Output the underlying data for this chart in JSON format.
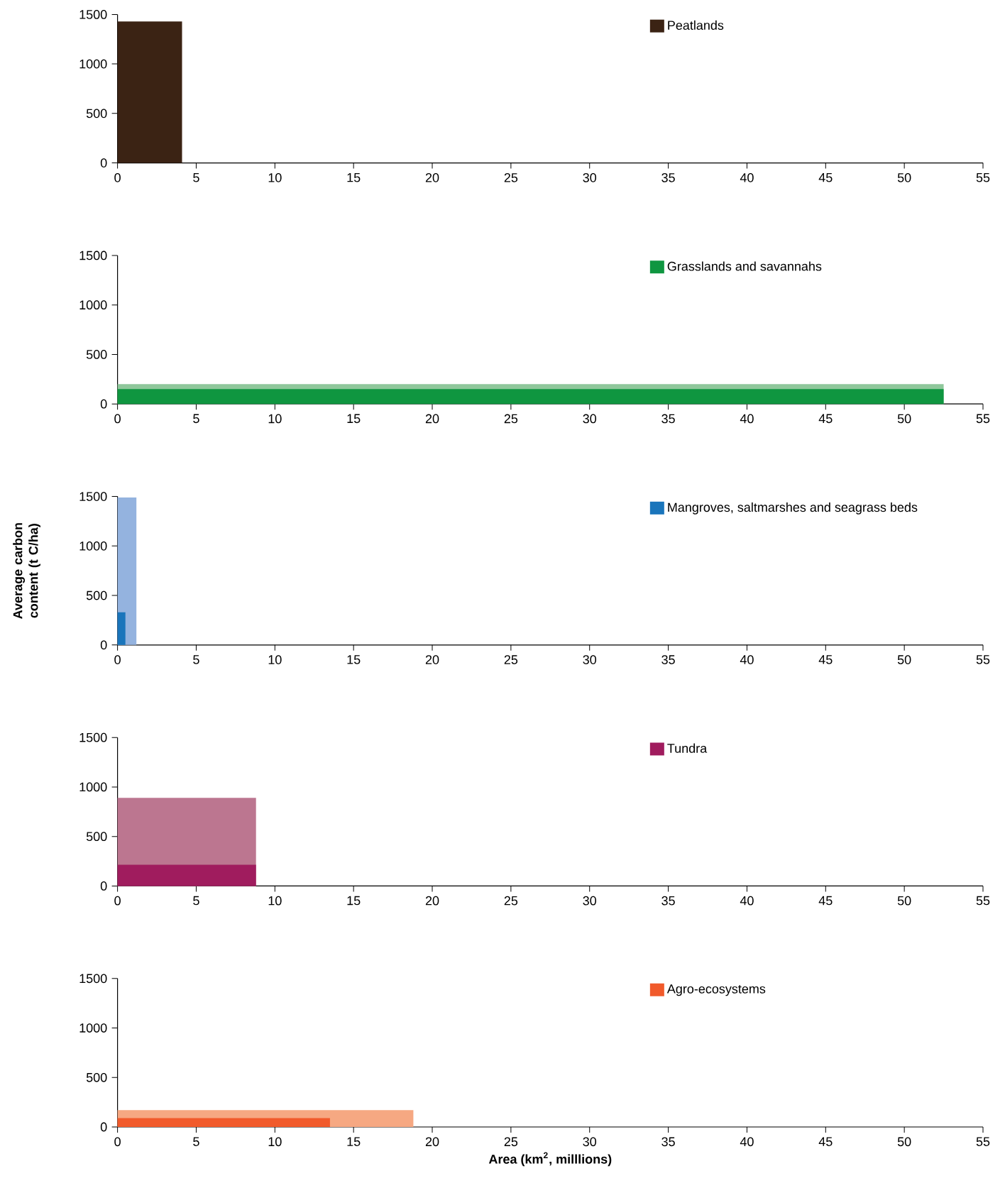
{
  "chart_data": [
    {
      "type": "area",
      "xlim": [
        0,
        55
      ],
      "ylim": [
        0,
        1500
      ],
      "xticks": [
        0,
        5,
        10,
        15,
        20,
        25,
        30,
        35,
        40,
        45,
        50,
        55
      ],
      "yticks": [
        0,
        500,
        1000,
        1500
      ],
      "legend": "top right",
      "series": [
        {
          "name": "Peatlands",
          "color": "#3b2314",
          "x": [
            0,
            4.1
          ],
          "values": [
            1430,
            1430
          ]
        }
      ]
    },
    {
      "type": "area",
      "xlim": [
        0,
        55
      ],
      "ylim": [
        0,
        1500
      ],
      "xticks": [
        0,
        5,
        10,
        15,
        20,
        25,
        30,
        35,
        40,
        45,
        50,
        55
      ],
      "yticks": [
        0,
        500,
        1000,
        1500
      ],
      "legend": "top right",
      "series": [
        {
          "color": "#8fc79b",
          "x": [
            0,
            52.5
          ],
          "values": [
            200,
            200
          ]
        },
        {
          "name": "Grasslands and savannahs",
          "color": "#0f9640",
          "x": [
            0,
            52.5
          ],
          "values": [
            150,
            150
          ]
        }
      ]
    },
    {
      "type": "area",
      "ylabel": "Average carbon content (t C/ha)",
      "xlim": [
        0,
        55
      ],
      "ylim": [
        0,
        1500
      ],
      "xticks": [
        0,
        5,
        10,
        15,
        20,
        25,
        30,
        35,
        40,
        45,
        50,
        55
      ],
      "yticks": [
        0,
        500,
        1000,
        1500
      ],
      "legend": "top right",
      "series": [
        {
          "color": "#94b3df",
          "x": [
            0,
            1.2
          ],
          "values": [
            1490,
            1490
          ]
        },
        {
          "name": "Mangroves, saltmarshes and seagrass beds",
          "color": "#1a75bb",
          "x": [
            0,
            0.5
          ],
          "values": [
            330,
            330
          ]
        }
      ]
    },
    {
      "type": "area",
      "xlim": [
        0,
        55
      ],
      "ylim": [
        0,
        1500
      ],
      "xticks": [
        0,
        5,
        10,
        15,
        20,
        25,
        30,
        35,
        40,
        45,
        50,
        55
      ],
      "yticks": [
        0,
        500,
        1000,
        1500
      ],
      "legend": "top right",
      "series": [
        {
          "color": "#bc7690",
          "x": [
            0,
            8.8
          ],
          "values": [
            890,
            890
          ]
        },
        {
          "name": "Tundra",
          "color": "#a01c5e",
          "x": [
            0,
            8.8
          ],
          "values": [
            215,
            215
          ]
        }
      ]
    },
    {
      "type": "area",
      "xlabel": "Area (km$^{2}$, milllions)",
      "xlim": [
        0,
        55
      ],
      "ylim": [
        0,
        1500
      ],
      "xticks": [
        0,
        5,
        10,
        15,
        20,
        25,
        30,
        35,
        40,
        45,
        50,
        55
      ],
      "yticks": [
        0,
        500,
        1000,
        1500
      ],
      "legend": "top right",
      "series": [
        {
          "color": "#f6a882",
          "x": [
            0,
            18.8
          ],
          "values": [
            170,
            170
          ]
        },
        {
          "name": "Agro-ecosystems",
          "color": "#f15a2b",
          "x": [
            0,
            13.5
          ],
          "values": [
            90,
            90
          ]
        }
      ]
    }
  ]
}
